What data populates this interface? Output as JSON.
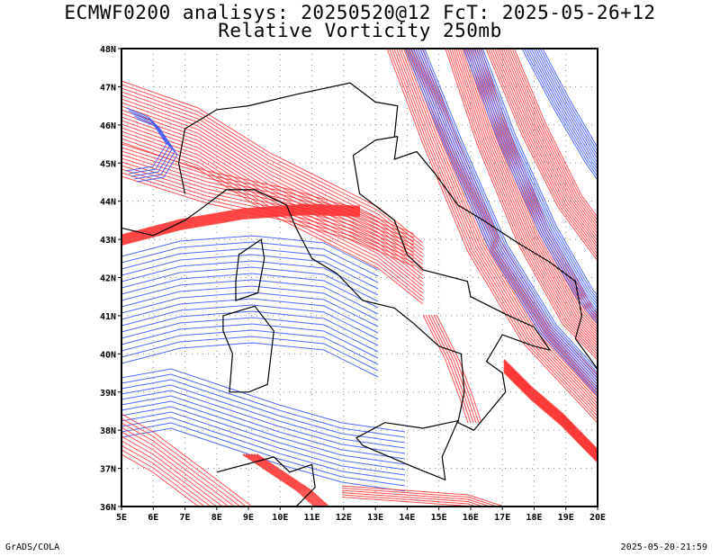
{
  "title": {
    "line1": "ECMWF0200 analisys: 20250520@12 FcT: 2025-05-26+12",
    "line2": "Relative Vorticity 250mb"
  },
  "map": {
    "projection": "lat-lon",
    "lon_range": [
      5,
      20
    ],
    "lat_range": [
      36,
      48
    ],
    "lon_ticks": [
      "5E",
      "6E",
      "7E",
      "8E",
      "9E",
      "10E",
      "11E",
      "12E",
      "13E",
      "14E",
      "15E",
      "16E",
      "17E",
      "18E",
      "19E",
      "20E"
    ],
    "lat_ticks": [
      "36N",
      "37N",
      "38N",
      "39N",
      "40N",
      "41N",
      "42N",
      "43N",
      "44N",
      "45N",
      "46N",
      "47N",
      "48N"
    ],
    "grid": "dotted",
    "colors": {
      "positive_contours": "#ff3030",
      "negative_contours": "#3050ff",
      "coastline": "#000000",
      "gridline": "#888888"
    },
    "field": "Relative Vorticity 250mb"
  },
  "footer": {
    "left": "GrADS/COLA",
    "right": "2025-05-20-21:59"
  }
}
